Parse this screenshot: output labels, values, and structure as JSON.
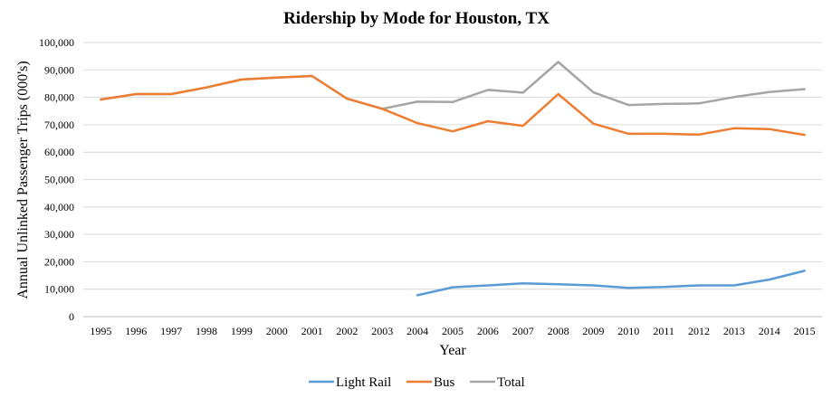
{
  "chart_data": {
    "type": "line",
    "title": "Ridership by Mode for Houston, TX",
    "xlabel": "Year",
    "ylabel": "Annual Unlinked Passenger Trips (000's)",
    "ylim": [
      0,
      100000
    ],
    "yticks": [
      "0",
      "10,000",
      "20,000",
      "30,000",
      "40,000",
      "50,000",
      "60,000",
      "70,000",
      "80,000",
      "90,000",
      "100,000"
    ],
    "categories": [
      "1995",
      "1996",
      "1997",
      "1998",
      "1999",
      "2000",
      "2001",
      "2002",
      "2003",
      "2004",
      "2005",
      "2006",
      "2007",
      "2008",
      "2009",
      "2010",
      "2011",
      "2012",
      "2013",
      "2014",
      "2015"
    ],
    "grid": "horizontal",
    "legend_position": "bottom",
    "series": [
      {
        "name": "Light Rail",
        "color": "#5b9bd5",
        "values": [
          null,
          null,
          null,
          null,
          null,
          null,
          null,
          null,
          null,
          7800,
          10700,
          11400,
          12100,
          11800,
          11400,
          10500,
          10800,
          11400,
          11400,
          13500,
          16700
        ]
      },
      {
        "name": "Bus",
        "color": "#ed7d31",
        "values": [
          79200,
          81200,
          81200,
          83600,
          86500,
          87200,
          87800,
          79500,
          75800,
          70600,
          67600,
          71300,
          69600,
          81200,
          70400,
          66700,
          66700,
          66400,
          68700,
          68400,
          66300
        ]
      },
      {
        "name": "Total",
        "color": "#a5a5a5",
        "values": [
          79200,
          81200,
          81200,
          83600,
          86500,
          87200,
          87800,
          79500,
          75800,
          78400,
          78300,
          82700,
          81700,
          92900,
          81800,
          77200,
          77600,
          77800,
          80100,
          81900,
          83000
        ]
      }
    ]
  }
}
